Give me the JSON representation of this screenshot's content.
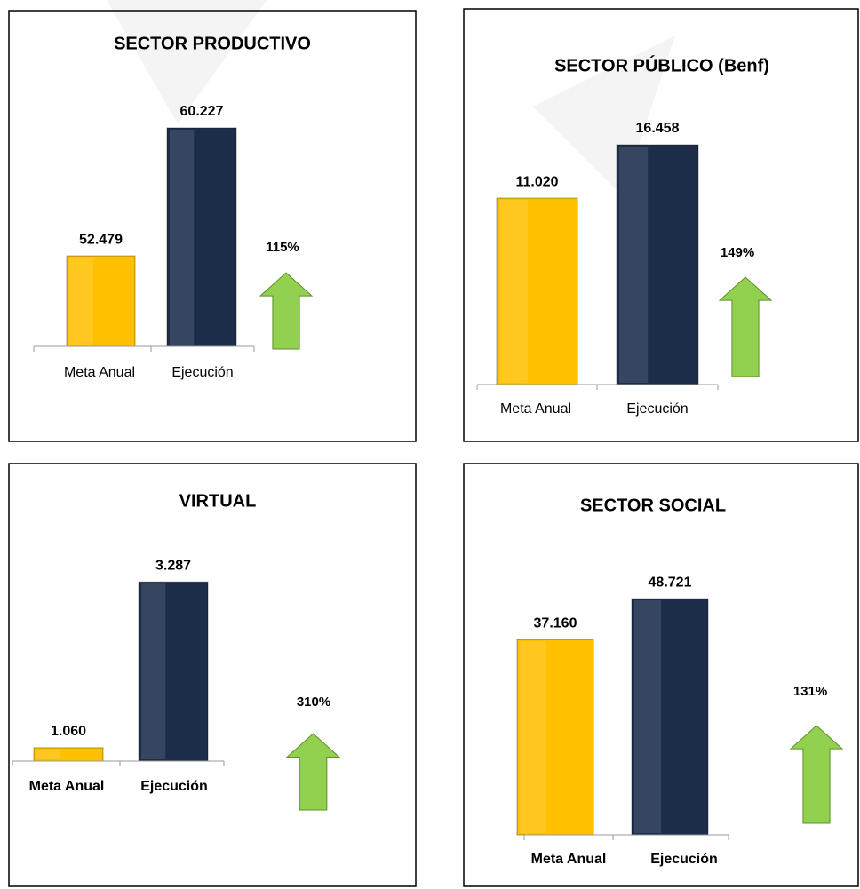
{
  "chart_data": [
    {
      "type": "bar",
      "title": "SECTOR PRODUCTIVO",
      "categories": [
        "Meta Anual",
        "Ejecución"
      ],
      "values": [
        52479,
        60227
      ],
      "value_labels": [
        "52.479",
        "60.227"
      ],
      "colors": [
        "#ffc000",
        "#1c2d4a"
      ],
      "ylim": [
        47000,
        62000
      ],
      "annotation": "115%",
      "arrow_color": "#92d050"
    },
    {
      "type": "bar",
      "title": "SECTOR PÚBLICO (Benf)",
      "categories": [
        "Meta Anual",
        "Ejecución"
      ],
      "values": [
        11020,
        16458
      ],
      "value_labels": [
        "11.020",
        "16.458"
      ],
      "colors": [
        "#ffc000",
        "#1c2d4a"
      ],
      "ylim": [
        -8000,
        18000
      ],
      "annotation": "149%",
      "arrow_color": "#92d050"
    },
    {
      "type": "bar",
      "title": "VIRTUAL",
      "categories": [
        "Meta Anual",
        "Ejecución"
      ],
      "values": [
        1060,
        3287
      ],
      "value_labels": [
        "1.060",
        "3.287"
      ],
      "colors": [
        "#ffc000",
        "#1c2d4a"
      ],
      "ylim": [
        880,
        3600
      ],
      "annotation": "310%",
      "arrow_color": "#92d050"
    },
    {
      "type": "bar",
      "title": "SECTOR SOCIAL",
      "categories": [
        "Meta Anual",
        "Ejecución"
      ],
      "values": [
        37160,
        48721
      ],
      "value_labels": [
        "37.160",
        "48.721"
      ],
      "colors": [
        "#ffc000",
        "#1c2d4a"
      ],
      "ylim": [
        -18000,
        50000
      ],
      "annotation": "131%",
      "arrow_color": "#92d050"
    }
  ]
}
